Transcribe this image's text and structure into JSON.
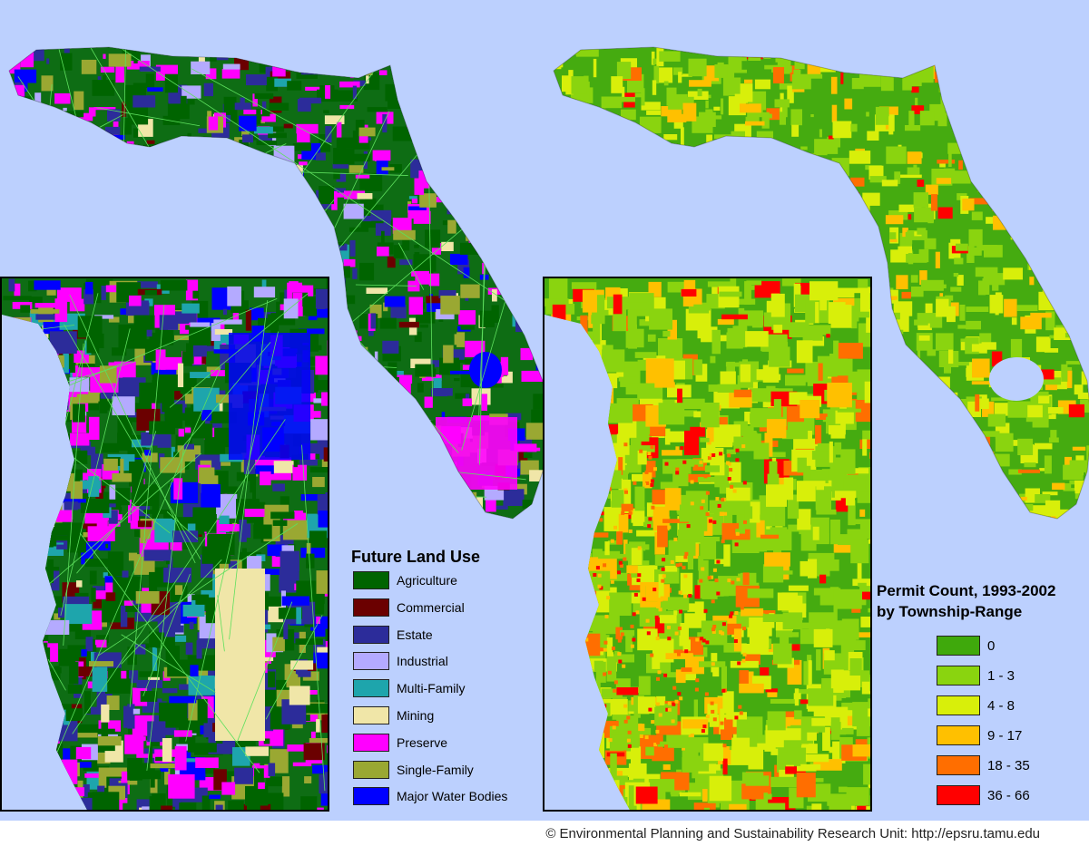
{
  "land_use": {
    "title": "Future Land Use",
    "categories": [
      {
        "label": "Agriculture",
        "color": "#006400"
      },
      {
        "label": "Commercial",
        "color": "#6b0000"
      },
      {
        "label": "Estate",
        "color": "#2c2c9a"
      },
      {
        "label": "Industrial",
        "color": "#b4aaff"
      },
      {
        "label": "Multi-Family",
        "color": "#1ea5ac"
      },
      {
        "label": "Mining",
        "color": "#f0e6a8"
      },
      {
        "label": "Preserve",
        "color": "#ff00ff"
      },
      {
        "label": "Single-Family",
        "color": "#9aa832"
      },
      {
        "label": "Major Water Bodies",
        "color": "#0000ff"
      }
    ]
  },
  "permits": {
    "title_line1": "Permit Count, 1993-2002",
    "title_line2": "by Township-Range",
    "classes": [
      {
        "label": "0",
        "color": "#3fa90c"
      },
      {
        "label": "1 - 3",
        "color": "#8ad40f"
      },
      {
        "label": "4 - 8",
        "color": "#d8ef0a"
      },
      {
        "label": "9 - 17",
        "color": "#ffc000"
      },
      {
        "label": "18 - 35",
        "color": "#ff6e00"
      },
      {
        "label": "36 - 66",
        "color": "#ff0000"
      }
    ]
  },
  "colors": {
    "water": "#bcd0fe",
    "land_base_left": "#0e6d14",
    "land_base_right": "#45ab10",
    "county_lines": "#5ee05e"
  },
  "credit": "© Environmental Planning and Sustainability Research Unit: http://epsru.tamu.edu"
}
